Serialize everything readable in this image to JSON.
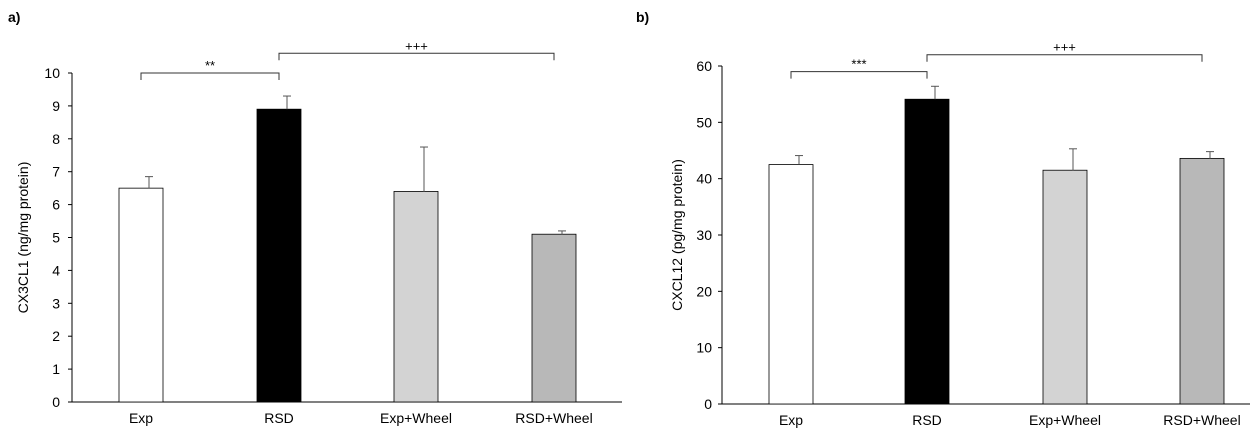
{
  "chart_data": [
    {
      "type": "bar",
      "panel_label": "a)",
      "ylabel": "CX3CL1 (ng/mg protein)",
      "xlabel": "",
      "ylim": [
        0,
        10
      ],
      "yticks": [
        0,
        1,
        2,
        3,
        4,
        5,
        6,
        7,
        8,
        9,
        10
      ],
      "categories": [
        "Exp",
        "RSD",
        "Exp+Wheel",
        "RSD+Wheel"
      ],
      "values": [
        6.5,
        8.9,
        6.4,
        5.1
      ],
      "errors": [
        0.35,
        0.4,
        1.35,
        0.1
      ],
      "bar_colors": [
        "#ffffff",
        "#000000",
        "#d3d3d3",
        "#b8b8b8"
      ],
      "grid": false,
      "significance": [
        {
          "from": 0,
          "to": 1,
          "label": "**",
          "level": 10.0
        },
        {
          "from": 1,
          "to": 3,
          "label": "+++",
          "level": 10.6
        }
      ]
    },
    {
      "type": "bar",
      "panel_label": "b)",
      "ylabel": "CXCL12 (pg/mg protein)",
      "xlabel": "",
      "ylim": [
        0,
        60
      ],
      "yticks": [
        0,
        10,
        20,
        30,
        40,
        50,
        60
      ],
      "categories": [
        "Exp",
        "RSD",
        "Exp+Wheel",
        "RSD+Wheel"
      ],
      "values": [
        42.5,
        54.1,
        41.5,
        43.6
      ],
      "errors": [
        1.6,
        2.3,
        3.8,
        1.2
      ],
      "bar_colors": [
        "#ffffff",
        "#000000",
        "#d3d3d3",
        "#b8b8b8"
      ],
      "grid": false,
      "significance": [
        {
          "from": 0,
          "to": 1,
          "label": "***",
          "level": 59.0
        },
        {
          "from": 1,
          "to": 3,
          "label": "+++",
          "level": 62.0
        }
      ]
    }
  ]
}
